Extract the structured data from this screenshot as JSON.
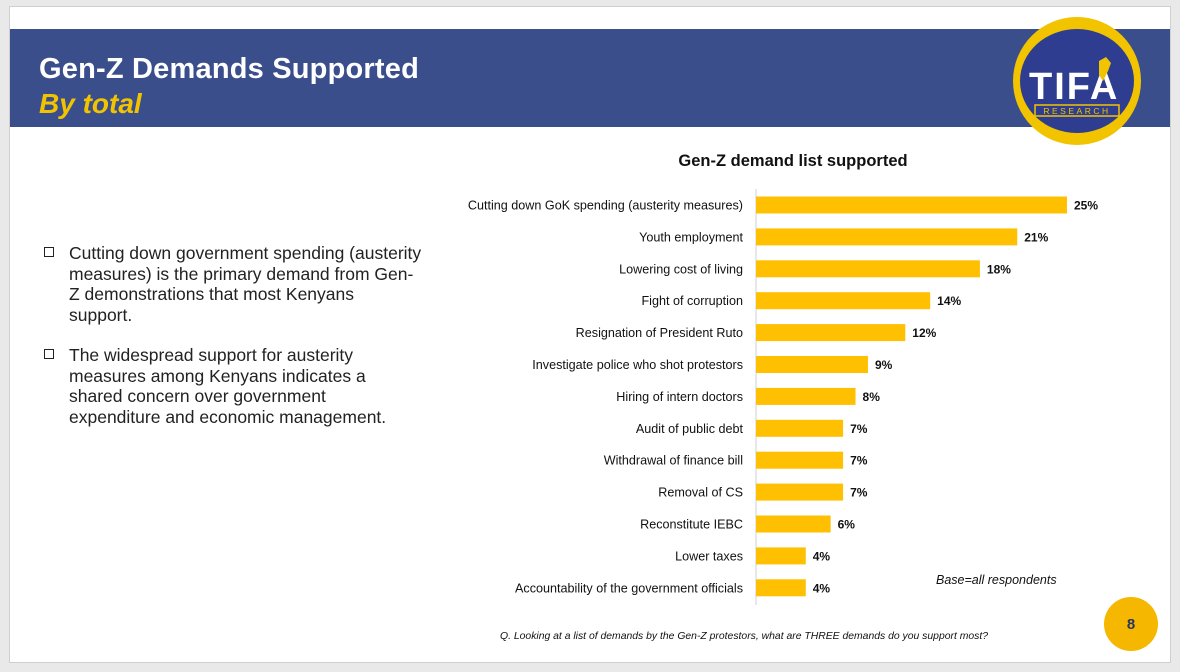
{
  "header": {
    "title": "Gen-Z Demands Supported",
    "subtitle": "By total",
    "logo": {
      "brand": "TIFA",
      "tagline": "RESEARCH"
    }
  },
  "bullets": [
    "Cutting down government spending (austerity measures) is the primary demand from Gen-Z demonstrations that most Kenyans support.",
    "The widespread support for austerity measures among Kenyans indicates a shared concern over government expenditure and economic management."
  ],
  "colors": {
    "header_bg": "#3b4e8c",
    "accent": "#f2c400",
    "bar": "#fec000"
  },
  "chart_data": {
    "type": "bar",
    "orientation": "horizontal",
    "title": "Gen-Z demand list supported",
    "xlabel": "",
    "ylabel": "",
    "xlim": [
      0,
      25
    ],
    "grid": false,
    "categories": [
      "Cutting down GoK spending (austerity measures)",
      "Youth employment",
      "Lowering cost of living",
      "Fight of corruption",
      "Resignation of President Ruto",
      "Investigate police who shot protestors",
      "Hiring of intern doctors",
      "Audit of public debt",
      "Withdrawal of finance bill",
      "Removal of CS",
      "Reconstitute IEBC",
      "Lower taxes",
      "Accountability of the government officials"
    ],
    "values": [
      25,
      21,
      18,
      14,
      12,
      9,
      8,
      7,
      7,
      7,
      6,
      4,
      4
    ],
    "value_labels": [
      "25%",
      "21%",
      "18%",
      "14%",
      "12%",
      "9%",
      "8%",
      "7%",
      "7%",
      "7%",
      "6%",
      "4%",
      "4%"
    ]
  },
  "notes": {
    "base": "Base=all respondents",
    "question": "Q. Looking at a list of demands by the Gen-Z protestors, what are THREE demands do you support most?"
  },
  "page_number": "8"
}
